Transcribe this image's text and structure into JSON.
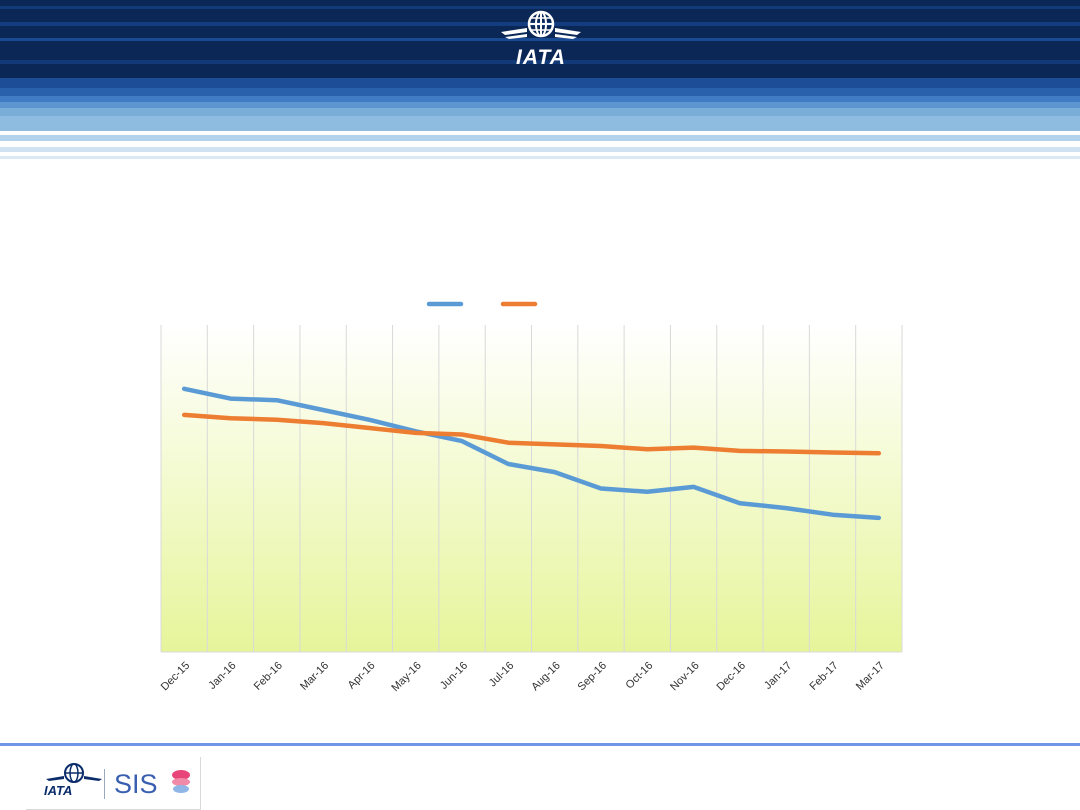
{
  "header": {
    "logo_text": "IATA",
    "brand_color": "#0a2c6b"
  },
  "chart_data": {
    "type": "line",
    "categories": [
      "Dec-15",
      "Jan-16",
      "Feb-16",
      "Mar-16",
      "Apr-16",
      "May-16",
      "Jun-16",
      "Jul-16",
      "Aug-16",
      "Sep-16",
      "Oct-16",
      "Nov-16",
      "Dec-16",
      "Jan-17",
      "Feb-17",
      "Mar-17"
    ],
    "series": [
      {
        "color": "#5b9bd5",
        "values": [
          80.5,
          77.5,
          77.0,
          74.0,
          71.0,
          67.5,
          64.5,
          57.5,
          55.0,
          50.0,
          49.0,
          50.5,
          45.5,
          44.0,
          42.0,
          41.0
        ]
      },
      {
        "color": "#ed7d31",
        "values": [
          72.5,
          71.5,
          71.0,
          70.0,
          68.5,
          67.0,
          66.5,
          64.0,
          63.5,
          63.0,
          62.0,
          62.5,
          61.5,
          61.3,
          61.0,
          60.8
        ]
      }
    ],
    "ylim": [
      0,
      100
    ],
    "grid": "vertical",
    "legend": "top"
  },
  "footer": {
    "logo_text": "IATA",
    "product_text": "SIS"
  }
}
